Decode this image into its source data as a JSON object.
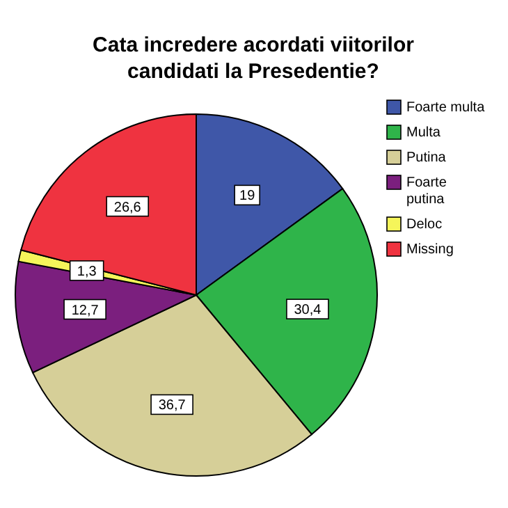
{
  "chart_data": {
    "type": "pie",
    "title": "Cata incredere acordati viitorilor candidati la Presedentie?",
    "categories": [
      "Foarte multa",
      "Multa",
      "Putina",
      "Foarte putina",
      "Deloc",
      "Missing"
    ],
    "values": [
      19,
      30.4,
      36.7,
      12.7,
      1.3,
      26.6
    ],
    "value_labels": [
      "19",
      "30,4",
      "36,7",
      "12,7",
      "1,3",
      "26,6"
    ],
    "colors": [
      "#3f57a8",
      "#2fb44a",
      "#d6cf98",
      "#7b1f7e",
      "#f5f55a",
      "#ef3340"
    ],
    "legend": "right"
  }
}
